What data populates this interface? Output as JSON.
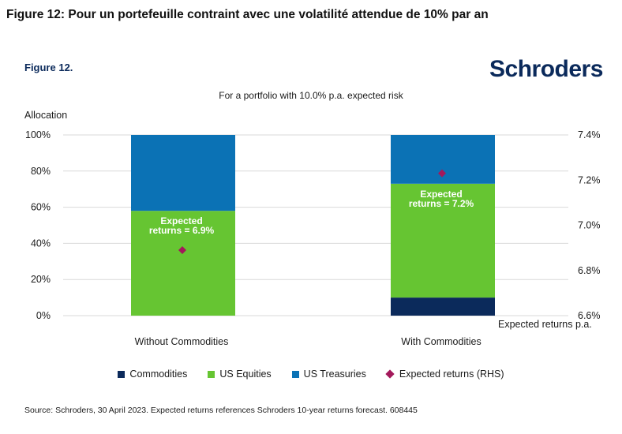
{
  "heading": "Figure 12: Pour un portefeuille contraint avec une volatilité attendue de 10% par an",
  "figure_label": "Figure 12.",
  "brand": "Schroders",
  "source": "Source: Schroders, 30 April 2023. Expected returns references Schroders 10-year returns forecast. 608445",
  "colors": {
    "commodities": "#0b2a5b",
    "us_equities": "#66c532",
    "us_treasuries": "#0b72b5",
    "expected_returns": "#a3195b",
    "brand": "#0b2a5b"
  },
  "chart_data": {
    "type": "bar",
    "stacked": true,
    "title": "For a portfolio with 10.0% p.a. expected risk",
    "ylabel": "Allocation",
    "y2label": "Expected returns p.a.",
    "ylim": [
      0,
      100
    ],
    "y2lim": [
      6.6,
      7.4
    ],
    "yticks": [
      "0%",
      "20%",
      "40%",
      "60%",
      "80%",
      "100%"
    ],
    "y2ticks": [
      "6.6%",
      "6.8%",
      "7.0%",
      "7.2%",
      "7.4%"
    ],
    "categories": [
      "Without Commodities",
      "With Commodities"
    ],
    "series": [
      {
        "name": "Commodities",
        "color_key": "commodities",
        "values": [
          0,
          10
        ]
      },
      {
        "name": "US Equities",
        "color_key": "us_equities",
        "values": [
          58,
          63
        ]
      },
      {
        "name": "US Treasuries",
        "color_key": "us_treasuries",
        "values": [
          42,
          27
        ]
      }
    ],
    "expected_returns": {
      "name": "Expected returns (RHS)",
      "values": [
        6.89,
        7.23
      ],
      "labels": [
        [
          "Expected",
          "returns = 6.9%"
        ],
        [
          "Expected",
          "returns = 7.2%"
        ]
      ]
    }
  }
}
